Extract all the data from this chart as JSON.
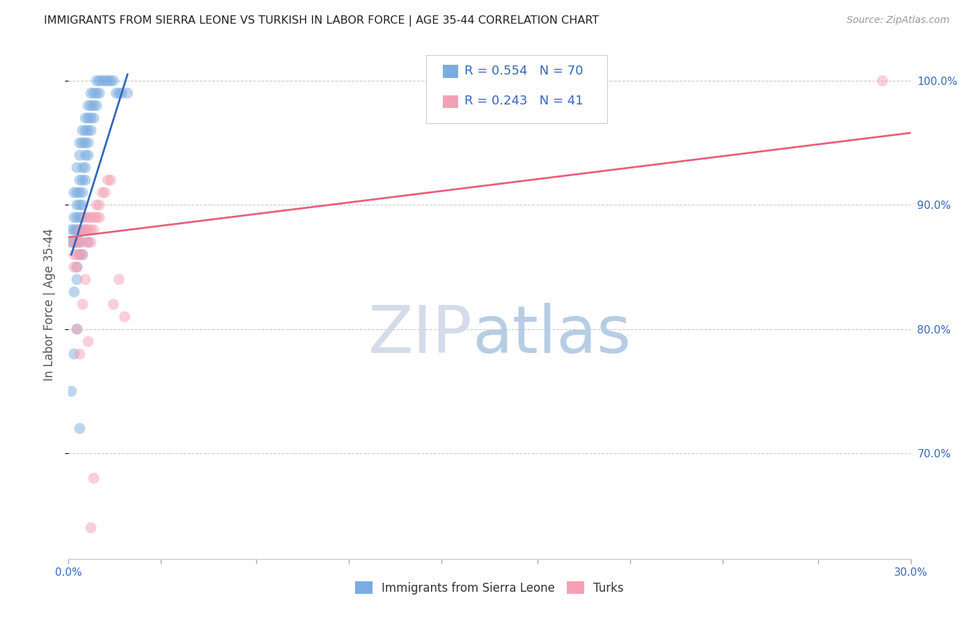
{
  "title": "IMMIGRANTS FROM SIERRA LEONE VS TURKISH IN LABOR FORCE | AGE 35-44 CORRELATION CHART",
  "source_text": "Source: ZipAtlas.com",
  "ylabel": "In Labor Force | Age 35-44",
  "xlim": [
    0.0,
    0.3
  ],
  "ylim": [
    0.615,
    1.025
  ],
  "blue_R": 0.554,
  "blue_N": 70,
  "pink_R": 0.243,
  "pink_N": 41,
  "blue_color": "#7AACE0",
  "pink_color": "#F4A0B5",
  "blue_line_color": "#3366BB",
  "pink_line_color": "#E8607A",
  "watermark_zip": "ZIP",
  "watermark_atlas": "atlas",
  "legend_label_blue": "Immigrants from Sierra Leone",
  "legend_label_pink": "Turks",
  "blue_scatter_x": [
    0.001,
    0.001,
    0.002,
    0.002,
    0.002,
    0.002,
    0.003,
    0.003,
    0.003,
    0.003,
    0.003,
    0.003,
    0.004,
    0.004,
    0.004,
    0.004,
    0.004,
    0.004,
    0.004,
    0.005,
    0.005,
    0.005,
    0.005,
    0.005,
    0.005,
    0.005,
    0.006,
    0.006,
    0.006,
    0.006,
    0.006,
    0.006,
    0.007,
    0.007,
    0.007,
    0.007,
    0.007,
    0.008,
    0.008,
    0.008,
    0.008,
    0.009,
    0.009,
    0.009,
    0.01,
    0.01,
    0.01,
    0.011,
    0.011,
    0.012,
    0.013,
    0.014,
    0.015,
    0.016,
    0.017,
    0.018,
    0.019,
    0.021,
    0.003,
    0.004,
    0.002,
    0.003,
    0.004,
    0.005,
    0.006,
    0.007,
    0.001,
    0.002,
    0.003,
    0.004
  ],
  "blue_scatter_y": [
    0.88,
    0.87,
    0.91,
    0.89,
    0.88,
    0.87,
    0.93,
    0.91,
    0.9,
    0.89,
    0.88,
    0.87,
    0.95,
    0.94,
    0.92,
    0.91,
    0.9,
    0.89,
    0.88,
    0.96,
    0.95,
    0.93,
    0.92,
    0.91,
    0.9,
    0.89,
    0.97,
    0.96,
    0.95,
    0.94,
    0.93,
    0.92,
    0.98,
    0.97,
    0.96,
    0.95,
    0.94,
    0.99,
    0.98,
    0.97,
    0.96,
    0.99,
    0.98,
    0.97,
    1.0,
    0.99,
    0.98,
    1.0,
    0.99,
    1.0,
    1.0,
    1.0,
    1.0,
    1.0,
    0.99,
    0.99,
    0.99,
    0.99,
    0.84,
    0.86,
    0.83,
    0.85,
    0.87,
    0.86,
    0.88,
    0.87,
    0.75,
    0.78,
    0.8,
    0.72
  ],
  "pink_scatter_x": [
    0.001,
    0.002,
    0.002,
    0.003,
    0.003,
    0.003,
    0.004,
    0.004,
    0.004,
    0.005,
    0.005,
    0.005,
    0.006,
    0.006,
    0.007,
    0.007,
    0.007,
    0.008,
    0.008,
    0.008,
    0.009,
    0.009,
    0.01,
    0.01,
    0.011,
    0.011,
    0.012,
    0.013,
    0.014,
    0.015,
    0.016,
    0.018,
    0.02,
    0.003,
    0.004,
    0.005,
    0.006,
    0.007,
    0.008,
    0.009,
    0.29
  ],
  "pink_scatter_y": [
    0.87,
    0.86,
    0.85,
    0.87,
    0.86,
    0.85,
    0.88,
    0.87,
    0.86,
    0.88,
    0.87,
    0.86,
    0.89,
    0.88,
    0.89,
    0.88,
    0.87,
    0.89,
    0.88,
    0.87,
    0.89,
    0.88,
    0.9,
    0.89,
    0.9,
    0.89,
    0.91,
    0.91,
    0.92,
    0.92,
    0.82,
    0.84,
    0.81,
    0.8,
    0.78,
    0.82,
    0.84,
    0.79,
    0.64,
    0.68,
    1.0
  ],
  "pink_line_x0": 0.0,
  "pink_line_y0": 0.874,
  "pink_line_x1": 0.3,
  "pink_line_y1": 0.958,
  "blue_line_x0": 0.001,
  "blue_line_y0": 0.86,
  "blue_line_x1": 0.021,
  "blue_line_y1": 1.005
}
